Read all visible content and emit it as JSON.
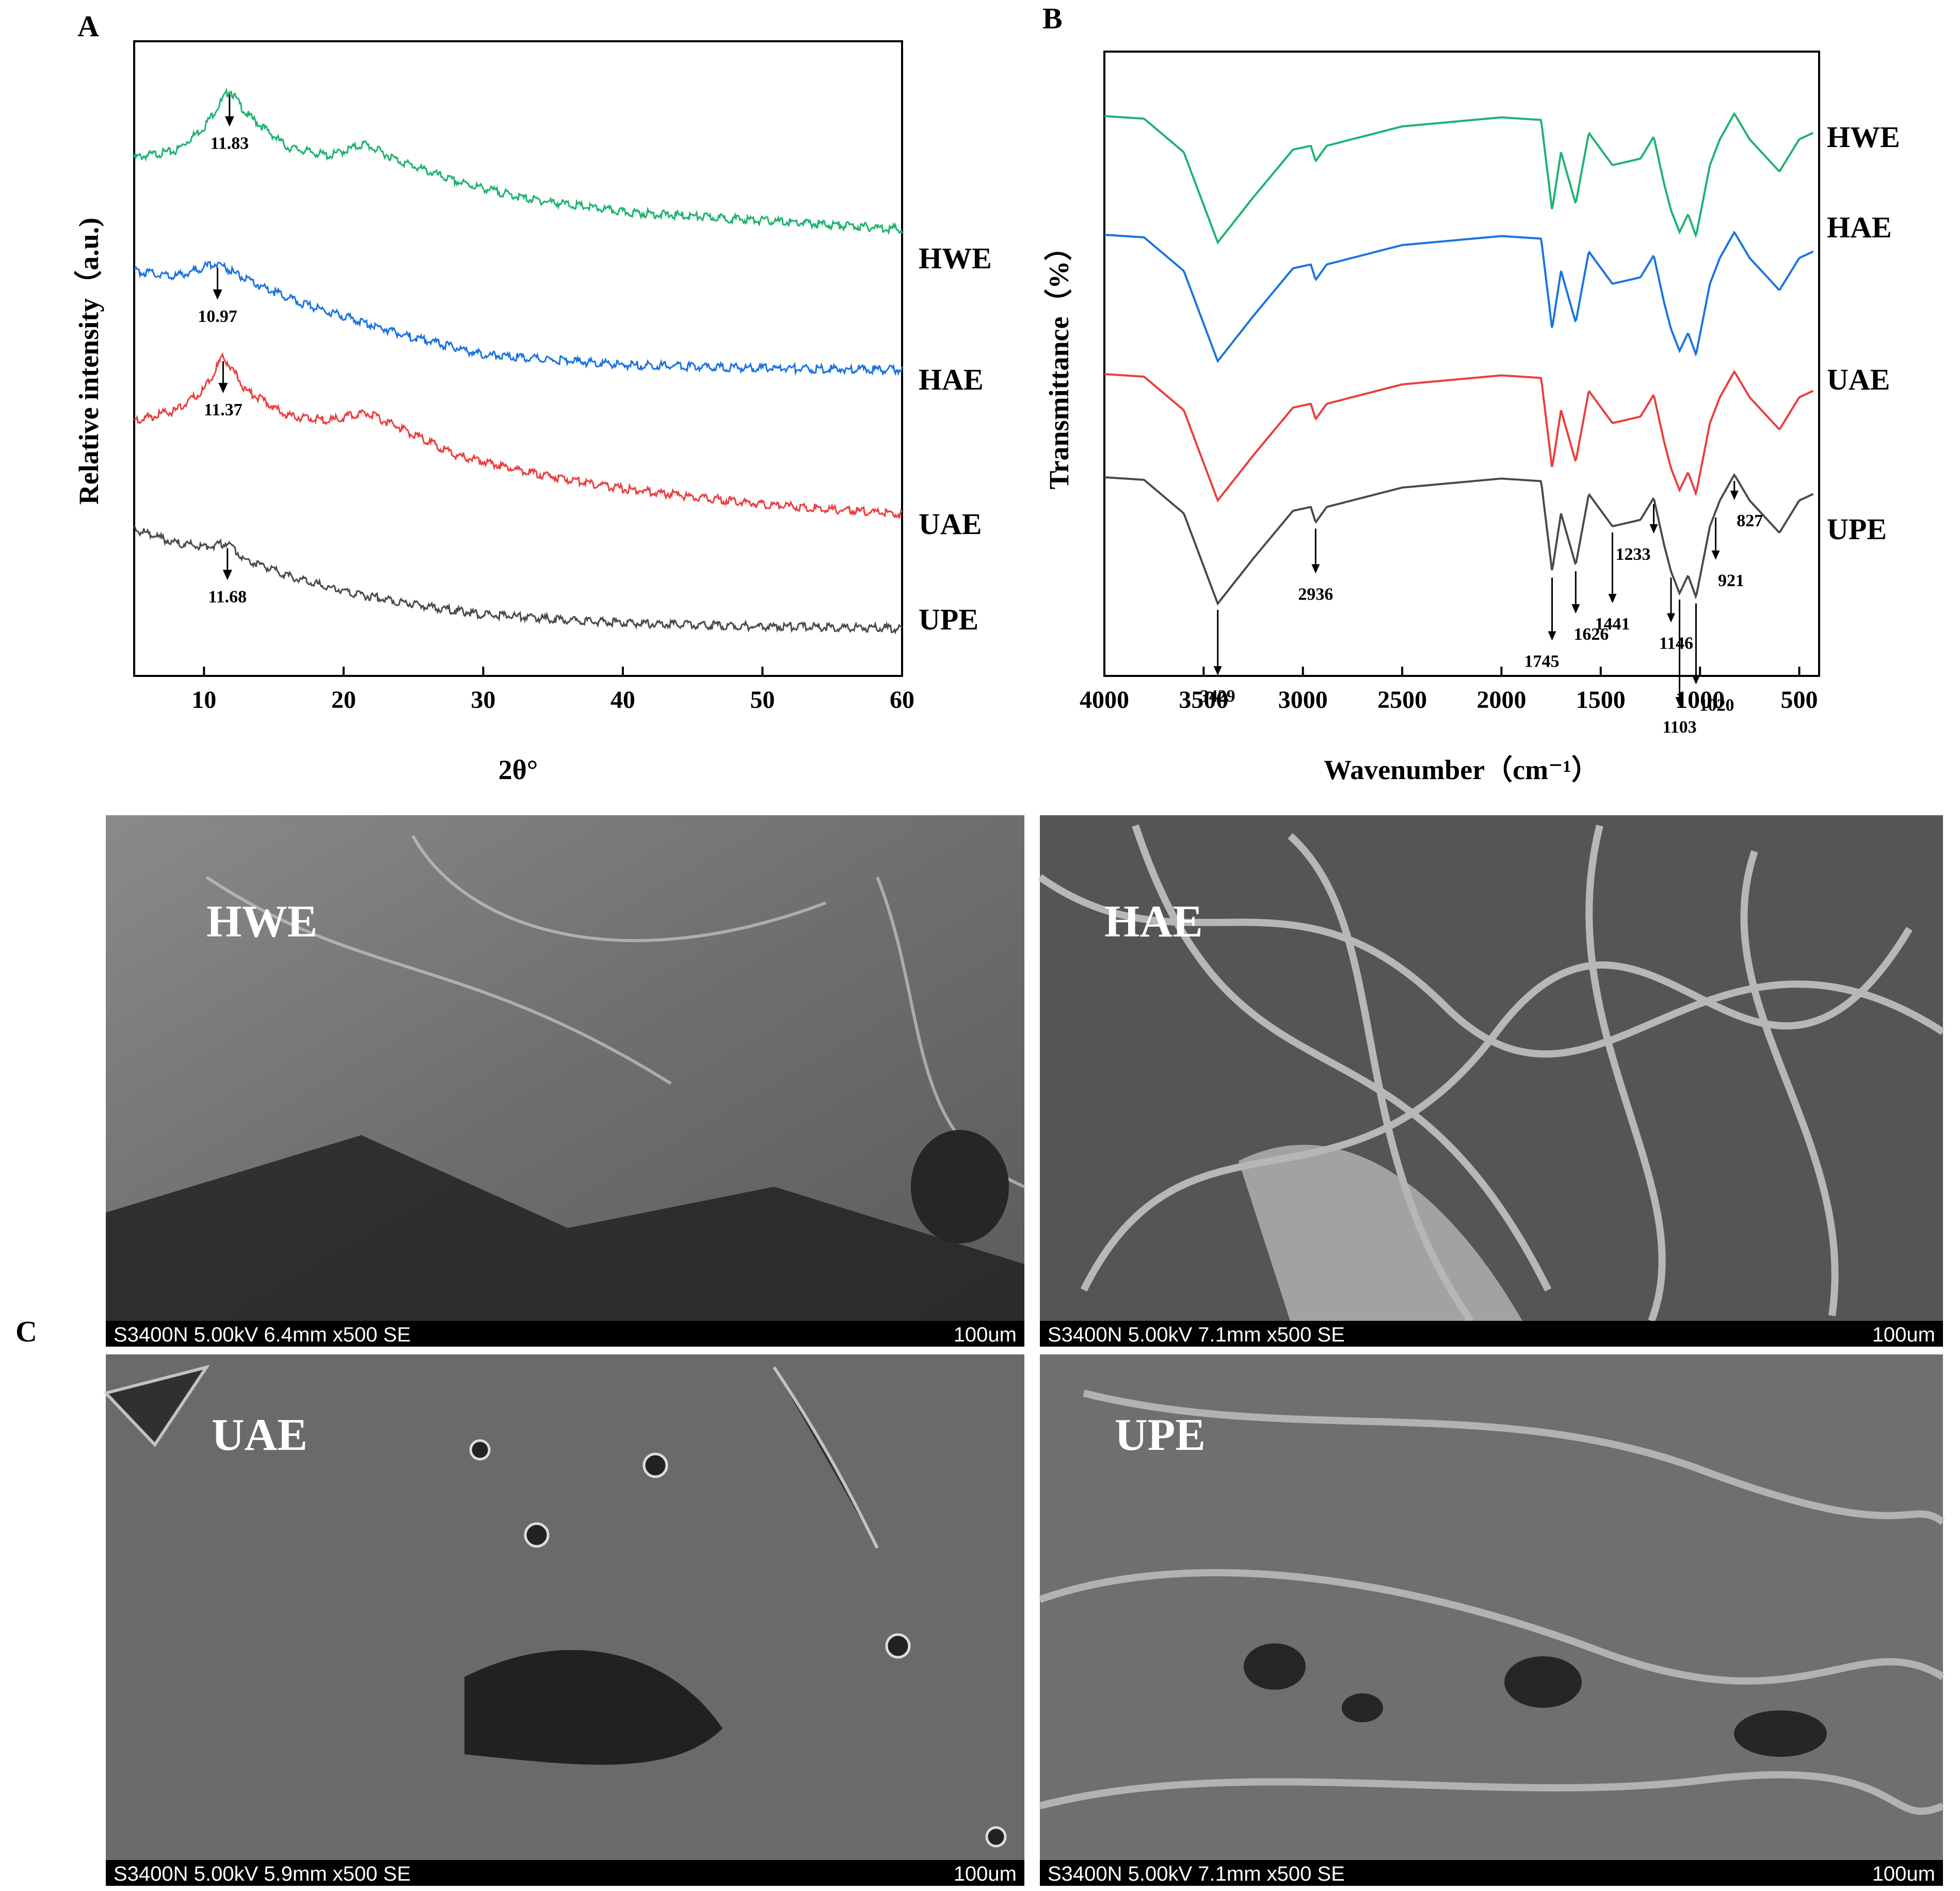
{
  "colors": {
    "HWE": "#1db370",
    "HAE": "#1a73e0",
    "UAE": "#ea3e3e",
    "UPE": "#4a4a4a"
  },
  "panel_labels": {
    "a": "A",
    "b": "B",
    "c": "C"
  },
  "chart_data": [
    {
      "panel": "A",
      "type": "line",
      "xlabel": "2θ°",
      "ylabel": "Relative intensity（a.u.)",
      "xlim": [
        5,
        60
      ],
      "xticks": [
        "10",
        "20",
        "30",
        "40",
        "50",
        "60"
      ],
      "grid": false,
      "legend": "series labels at right end of each curve",
      "series": [
        {
          "name": "HWE",
          "peak_label": "11.83",
          "peak_x": 11.83,
          "points": [
            [
              5,
              0.92
            ],
            [
              8,
              0.96
            ],
            [
              10,
              1.1
            ],
            [
              11.83,
              1.32
            ],
            [
              13,
              1.18
            ],
            [
              16,
              0.98
            ],
            [
              19,
              0.93
            ],
            [
              21.5,
              1.0
            ],
            [
              24,
              0.9
            ],
            [
              28,
              0.78
            ],
            [
              33,
              0.68
            ],
            [
              40,
              0.6
            ],
            [
              50,
              0.55
            ],
            [
              60,
              0.5
            ]
          ]
        },
        {
          "name": "HAE",
          "peak_label": "10.97",
          "peak_x": 10.97,
          "points": [
            [
              5,
              0.95
            ],
            [
              8,
              0.92
            ],
            [
              10.97,
              1.0
            ],
            [
              13,
              0.9
            ],
            [
              17,
              0.76
            ],
            [
              21,
              0.66
            ],
            [
              25,
              0.56
            ],
            [
              30,
              0.46
            ],
            [
              40,
              0.4
            ],
            [
              50,
              0.38
            ],
            [
              60,
              0.37
            ]
          ]
        },
        {
          "name": "UAE",
          "peak_label": "11.37",
          "peak_x": 11.37,
          "points": [
            [
              5,
              0.92
            ],
            [
              8,
              0.98
            ],
            [
              10,
              1.1
            ],
            [
              11.37,
              1.3
            ],
            [
              13,
              1.1
            ],
            [
              16,
              0.95
            ],
            [
              19,
              0.92
            ],
            [
              21.5,
              0.97
            ],
            [
              24,
              0.88
            ],
            [
              28,
              0.72
            ],
            [
              33,
              0.62
            ],
            [
              40,
              0.52
            ],
            [
              50,
              0.43
            ],
            [
              60,
              0.37
            ]
          ]
        },
        {
          "name": "UPE",
          "peak_label": "11.68",
          "peak_x": 11.68,
          "points": [
            [
              5,
              1.1
            ],
            [
              8,
              1.02
            ],
            [
              10,
              1.0
            ],
            [
              11.68,
              1.02
            ],
            [
              13,
              0.92
            ],
            [
              17,
              0.8
            ],
            [
              21,
              0.72
            ],
            [
              25,
              0.66
            ],
            [
              30,
              0.6
            ],
            [
              40,
              0.55
            ],
            [
              50,
              0.53
            ],
            [
              60,
              0.52
            ]
          ]
        }
      ]
    },
    {
      "panel": "B",
      "type": "line",
      "xlabel": "Wavenumber（cm⁻¹）",
      "ylabel": "Transmittance（%）",
      "xlim": [
        4000,
        400
      ],
      "xticks": [
        "4000",
        "3500",
        "3000",
        "2500",
        "2000",
        "1500",
        "1000",
        "500"
      ],
      "grid": false,
      "legend": "series labels at right end of each curve",
      "series": [
        {
          "name": "HWE",
          "points": [
            [
              4000,
              0.98
            ],
            [
              3800,
              0.96
            ],
            [
              3600,
              0.7
            ],
            [
              3429,
              0.0
            ],
            [
              3250,
              0.35
            ],
            [
              3050,
              0.72
            ],
            [
              2960,
              0.75
            ],
            [
              2936,
              0.63
            ],
            [
              2880,
              0.75
            ],
            [
              2500,
              0.9
            ],
            [
              2000,
              0.97
            ],
            [
              1800,
              0.95
            ],
            [
              1745,
              0.25
            ],
            [
              1700,
              0.7
            ],
            [
              1626,
              0.3
            ],
            [
              1560,
              0.85
            ],
            [
              1441,
              0.6
            ],
            [
              1300,
              0.65
            ],
            [
              1233,
              0.82
            ],
            [
              1180,
              0.45
            ],
            [
              1146,
              0.25
            ],
            [
              1103,
              0.08
            ],
            [
              1060,
              0.22
            ],
            [
              1020,
              0.05
            ],
            [
              950,
              0.6
            ],
            [
              900,
              0.8
            ],
            [
              827,
              1.0
            ],
            [
              750,
              0.8
            ],
            [
              600,
              0.55
            ],
            [
              500,
              0.8
            ],
            [
              430,
              0.85
            ]
          ]
        },
        {
          "name": "HAE",
          "points": [
            [
              4000,
              0.98
            ],
            [
              3800,
              0.96
            ],
            [
              3600,
              0.7
            ],
            [
              3429,
              0.0
            ],
            [
              3250,
              0.35
            ],
            [
              3050,
              0.72
            ],
            [
              2960,
              0.75
            ],
            [
              2936,
              0.63
            ],
            [
              2880,
              0.75
            ],
            [
              2500,
              0.9
            ],
            [
              2000,
              0.97
            ],
            [
              1800,
              0.95
            ],
            [
              1745,
              0.25
            ],
            [
              1700,
              0.7
            ],
            [
              1626,
              0.3
            ],
            [
              1560,
              0.85
            ],
            [
              1441,
              0.6
            ],
            [
              1300,
              0.65
            ],
            [
              1233,
              0.82
            ],
            [
              1180,
              0.45
            ],
            [
              1146,
              0.25
            ],
            [
              1103,
              0.08
            ],
            [
              1060,
              0.22
            ],
            [
              1020,
              0.05
            ],
            [
              950,
              0.6
            ],
            [
              900,
              0.8
            ],
            [
              827,
              1.0
            ],
            [
              750,
              0.8
            ],
            [
              600,
              0.55
            ],
            [
              500,
              0.8
            ],
            [
              430,
              0.85
            ]
          ]
        },
        {
          "name": "UAE",
          "points": [
            [
              4000,
              0.98
            ],
            [
              3800,
              0.96
            ],
            [
              3600,
              0.7
            ],
            [
              3429,
              0.0
            ],
            [
              3250,
              0.35
            ],
            [
              3050,
              0.72
            ],
            [
              2960,
              0.75
            ],
            [
              2936,
              0.63
            ],
            [
              2880,
              0.75
            ],
            [
              2500,
              0.9
            ],
            [
              2000,
              0.97
            ],
            [
              1800,
              0.95
            ],
            [
              1745,
              0.25
            ],
            [
              1700,
              0.7
            ],
            [
              1626,
              0.3
            ],
            [
              1560,
              0.85
            ],
            [
              1441,
              0.6
            ],
            [
              1300,
              0.65
            ],
            [
              1233,
              0.82
            ],
            [
              1180,
              0.45
            ],
            [
              1146,
              0.25
            ],
            [
              1103,
              0.08
            ],
            [
              1060,
              0.22
            ],
            [
              1020,
              0.05
            ],
            [
              950,
              0.6
            ],
            [
              900,
              0.8
            ],
            [
              827,
              1.0
            ],
            [
              750,
              0.8
            ],
            [
              600,
              0.55
            ],
            [
              500,
              0.8
            ],
            [
              430,
              0.85
            ]
          ]
        },
        {
          "name": "UPE",
          "points": [
            [
              4000,
              0.98
            ],
            [
              3800,
              0.96
            ],
            [
              3600,
              0.7
            ],
            [
              3429,
              0.0
            ],
            [
              3250,
              0.35
            ],
            [
              3050,
              0.72
            ],
            [
              2960,
              0.75
            ],
            [
              2936,
              0.63
            ],
            [
              2880,
              0.75
            ],
            [
              2500,
              0.9
            ],
            [
              2000,
              0.97
            ],
            [
              1800,
              0.95
            ],
            [
              1745,
              0.25
            ],
            [
              1700,
              0.7
            ],
            [
              1626,
              0.3
            ],
            [
              1560,
              0.85
            ],
            [
              1441,
              0.6
            ],
            [
              1300,
              0.65
            ],
            [
              1233,
              0.82
            ],
            [
              1180,
              0.45
            ],
            [
              1146,
              0.25
            ],
            [
              1103,
              0.08
            ],
            [
              1060,
              0.22
            ],
            [
              1020,
              0.05
            ],
            [
              950,
              0.6
            ],
            [
              900,
              0.8
            ],
            [
              827,
              1.0
            ],
            [
              750,
              0.8
            ],
            [
              600,
              0.55
            ],
            [
              500,
              0.8
            ],
            [
              430,
              0.85
            ]
          ]
        }
      ],
      "peak_annotations": [
        {
          "label": "3429",
          "x": 3429
        },
        {
          "label": "2936",
          "x": 2936
        },
        {
          "label": "1745",
          "x": 1745
        },
        {
          "label": "1626",
          "x": 1626
        },
        {
          "label": "1441",
          "x": 1441
        },
        {
          "label": "1233",
          "x": 1233
        },
        {
          "label": "1146",
          "x": 1146
        },
        {
          "label": "1103",
          "x": 1103
        },
        {
          "label": "1020",
          "x": 1020
        },
        {
          "label": "921",
          "x": 921
        },
        {
          "label": "827",
          "x": 827
        }
      ]
    }
  ],
  "sem": [
    {
      "sample": "HWE",
      "info": "S3400N 5.00kV 6.4mm x500 SE",
      "scale": "100um"
    },
    {
      "sample": "HAE",
      "info": "S3400N 5.00kV 7.1mm x500 SE",
      "scale": "100um"
    },
    {
      "sample": "UAE",
      "info": "S3400N 5.00kV 5.9mm x500 SE",
      "scale": "100um"
    },
    {
      "sample": "UPE",
      "info": "S3400N 5.00kV 7.1mm x500 SE",
      "scale": "100um"
    }
  ]
}
